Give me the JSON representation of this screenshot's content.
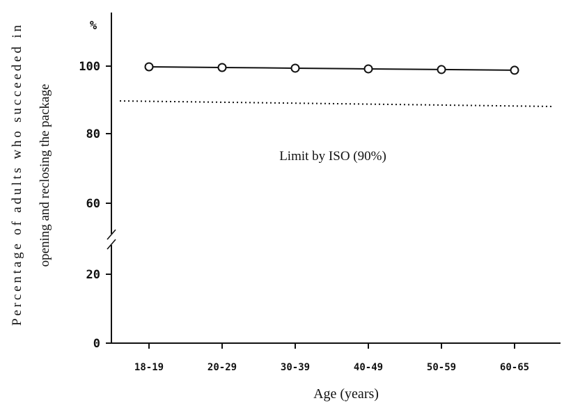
{
  "chart_data": {
    "type": "line",
    "categories": [
      "18-19",
      "20-29",
      "30-39",
      "40-49",
      "50-59",
      "60-65"
    ],
    "series": [
      {
        "values": [
          99.8,
          99.6,
          99.4,
          99.2,
          99.0,
          98.8
        ]
      }
    ],
    "reference_line": {
      "value": 90,
      "label": "Limit by ISO (90%)",
      "style": "dotted"
    },
    "xlabel": "Age (years)",
    "ylabel_line1": "Percentage of adults who succeeded in",
    "ylabel_line2": "opening and reclosing the package",
    "y_unit": "%",
    "y_ticks": [
      "100",
      "80",
      "60",
      "20",
      "0"
    ],
    "y_axis_break": true,
    "grid": false,
    "colors": {
      "line": "#111111",
      "marker_fill": "#ffffff"
    }
  }
}
